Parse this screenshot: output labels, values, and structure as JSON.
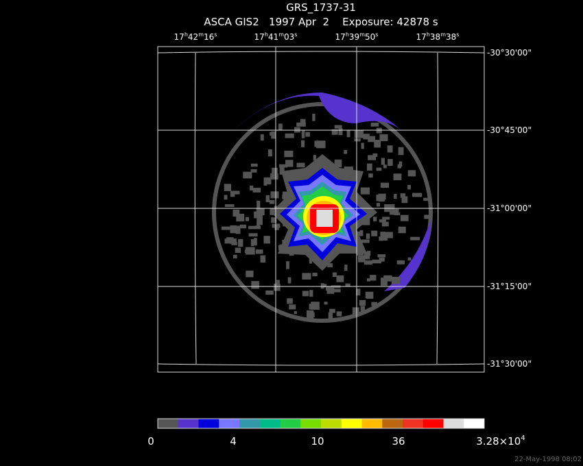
{
  "header": {
    "title": "GRS_1737-31",
    "subtitle": "ASCA GIS2   1997 Apr  2    Exposure: 42878 s"
  },
  "ra_labels": [
    [
      "17",
      "h",
      "42",
      "m",
      "16",
      "s"
    ],
    [
      "17",
      "h",
      "41",
      "m",
      "03",
      "s"
    ],
    [
      "17",
      "h",
      "39",
      "m",
      "50",
      "s"
    ],
    [
      "17",
      "h",
      "38",
      "m",
      "38",
      "s"
    ]
  ],
  "dec_labels": [
    "-30°30'00\"",
    "-30°45'00\"",
    "-31°00'00\"",
    "-31°15'00\"",
    "-31°30'00\""
  ],
  "colorbar": {
    "colors": [
      "#555555",
      "#5533cc",
      "#0000dd",
      "#7777ff",
      "#3399aa",
      "#00bb88",
      "#22cc44",
      "#77dd00",
      "#bbdd00",
      "#ffff00",
      "#ffbb00",
      "#bb6611",
      "#ee3322",
      "#ff0000",
      "#dddddd",
      "#ffffff"
    ],
    "labels": [
      "0",
      "4",
      "10",
      "36"
    ],
    "max_label": [
      "3.28×10",
      "4"
    ]
  },
  "timestamp": "22-May-1998 08:02"
}
